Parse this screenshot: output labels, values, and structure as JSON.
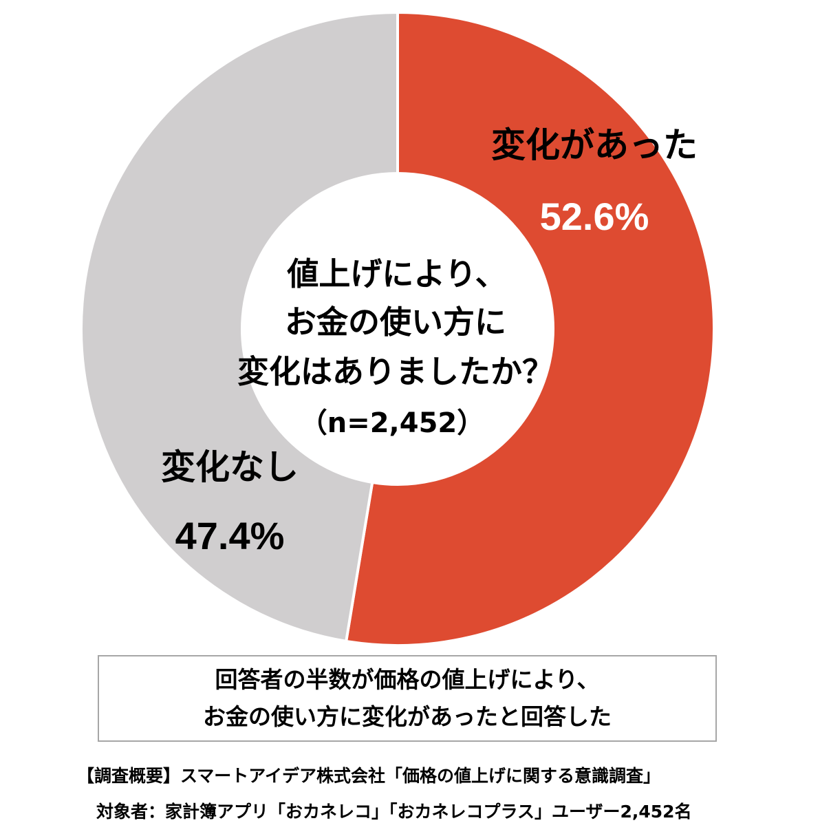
{
  "chart_data": {
    "type": "pie",
    "donut": true,
    "categories": [
      "変化があった",
      "変化なし"
    ],
    "values": [
      52.6,
      47.4
    ],
    "value_labels": [
      "52.6%",
      "47.4%"
    ],
    "colors": [
      "#de4b31",
      "#d0cecf"
    ],
    "value_label_colors": [
      "#ffffff",
      "#000000"
    ],
    "center_title_lines": [
      "値上げにより、",
      "お金の使い方に",
      "変化はありましたか？"
    ],
    "center_n": "（n=2,452）",
    "start": "12 o'clock",
    "direction": "clockwise"
  },
  "summary": {
    "line1": "回答者の半数が価格の値上げにより、",
    "line2": "お金の使い方に変化があったと回答した"
  },
  "footer": {
    "line1": "【調査概要】スマートアイデア株式会社「価格の値上げに関する意識調査」",
    "line2": "対象者：家計簿アプリ「おカネレコ」「おカネレコプラス」ユーザー2,452名"
  }
}
